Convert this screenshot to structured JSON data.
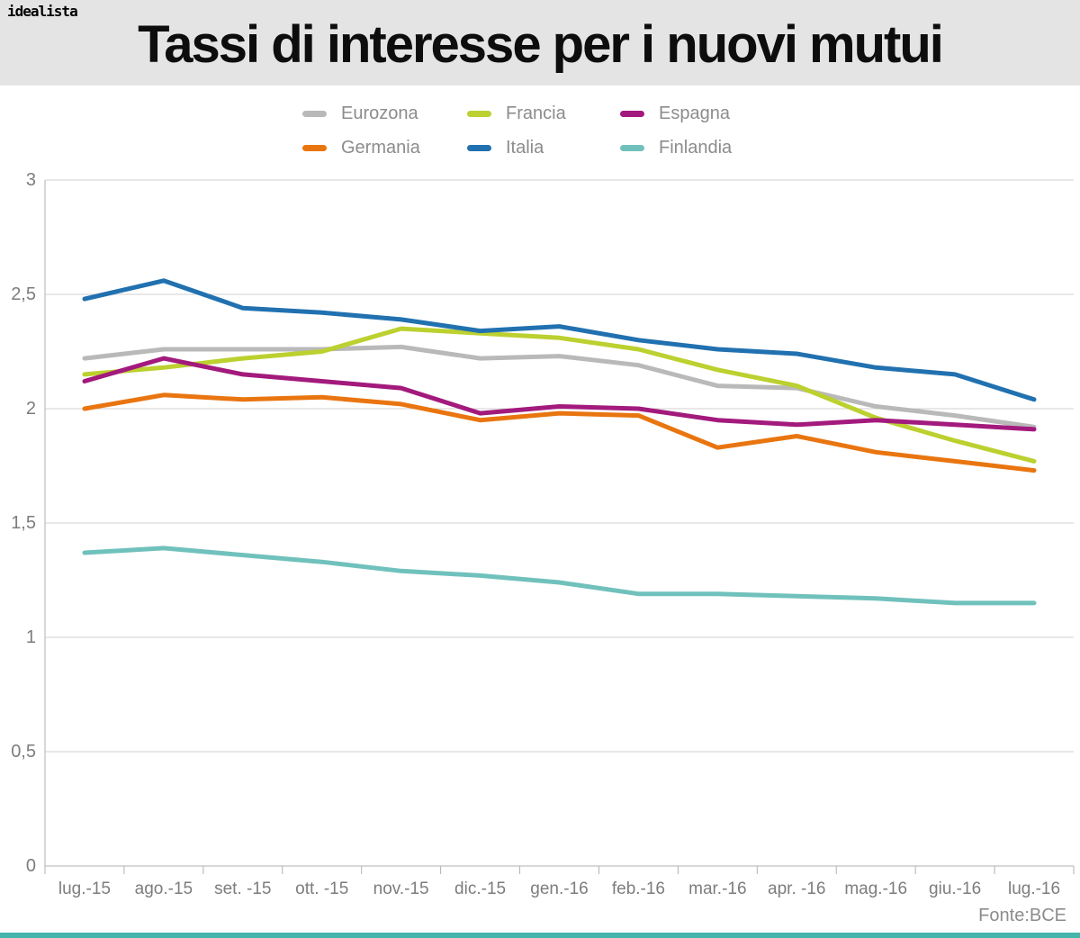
{
  "header": {
    "logo": "idealista",
    "title": "Tassi di interesse per i nuovi mutui",
    "background": "#e4e4e4"
  },
  "footer": {
    "source": "Fonte:BCE",
    "bar_color": "#45b4ab"
  },
  "chart_data": {
    "type": "line",
    "title": "Tassi di interesse per i nuovi mutui",
    "categories": [
      "lug.-15",
      "ago.-15",
      "set. -15",
      "ott. -15",
      "nov.-15",
      "dic.-15",
      "gen.-16",
      "feb.-16",
      "mar.-16",
      "apr. -16",
      "mag.-16",
      "giu.-16",
      "lug.-16"
    ],
    "series": [
      {
        "name": "Eurozona",
        "color": "#b9b9b9",
        "values": [
          2.22,
          2.26,
          2.26,
          2.26,
          2.27,
          2.22,
          2.23,
          2.19,
          2.1,
          2.09,
          2.01,
          1.97,
          1.92
        ]
      },
      {
        "name": "Francia",
        "color": "#bcd02f",
        "values": [
          2.15,
          2.18,
          2.22,
          2.25,
          2.35,
          2.33,
          2.31,
          2.26,
          2.17,
          2.1,
          1.96,
          1.86,
          1.77
        ]
      },
      {
        "name": "Espagna",
        "color": "#a31a7d",
        "values": [
          2.12,
          2.22,
          2.15,
          2.12,
          2.09,
          1.98,
          2.01,
          2.0,
          1.95,
          1.93,
          1.95,
          1.93,
          1.91
        ]
      },
      {
        "name": "Germania",
        "color": "#e97510",
        "values": [
          2.0,
          2.06,
          2.04,
          2.05,
          2.02,
          1.95,
          1.98,
          1.97,
          1.83,
          1.88,
          1.81,
          1.77,
          1.73
        ]
      },
      {
        "name": "Italia",
        "color": "#2171b0",
        "values": [
          2.48,
          2.56,
          2.44,
          2.42,
          2.39,
          2.34,
          2.36,
          2.3,
          2.26,
          2.24,
          2.18,
          2.15,
          2.04
        ]
      },
      {
        "name": "Finlandia",
        "color": "#70c1bc",
        "values": [
          1.37,
          1.39,
          1.36,
          1.33,
          1.29,
          1.27,
          1.24,
          1.19,
          1.19,
          1.18,
          1.17,
          1.15,
          1.15
        ]
      }
    ],
    "legend_order": [
      "Eurozona",
      "Francia",
      "Espagna",
      "Germania",
      "Italia",
      "Finlandia"
    ],
    "legend_position": "top",
    "xlabel": "",
    "ylabel": "",
    "ylim": [
      0,
      3
    ],
    "ytick_step": 0.5,
    "ytick_labels": [
      "0",
      "0,5",
      "1",
      "1,5",
      "2",
      "2,5",
      "3"
    ],
    "grid": true,
    "colors": {
      "grid": "#d2d2d2",
      "axis": "#b2b2b2",
      "tick_label": "#7d7d7d",
      "legend_text": "#8c8c8c"
    }
  }
}
